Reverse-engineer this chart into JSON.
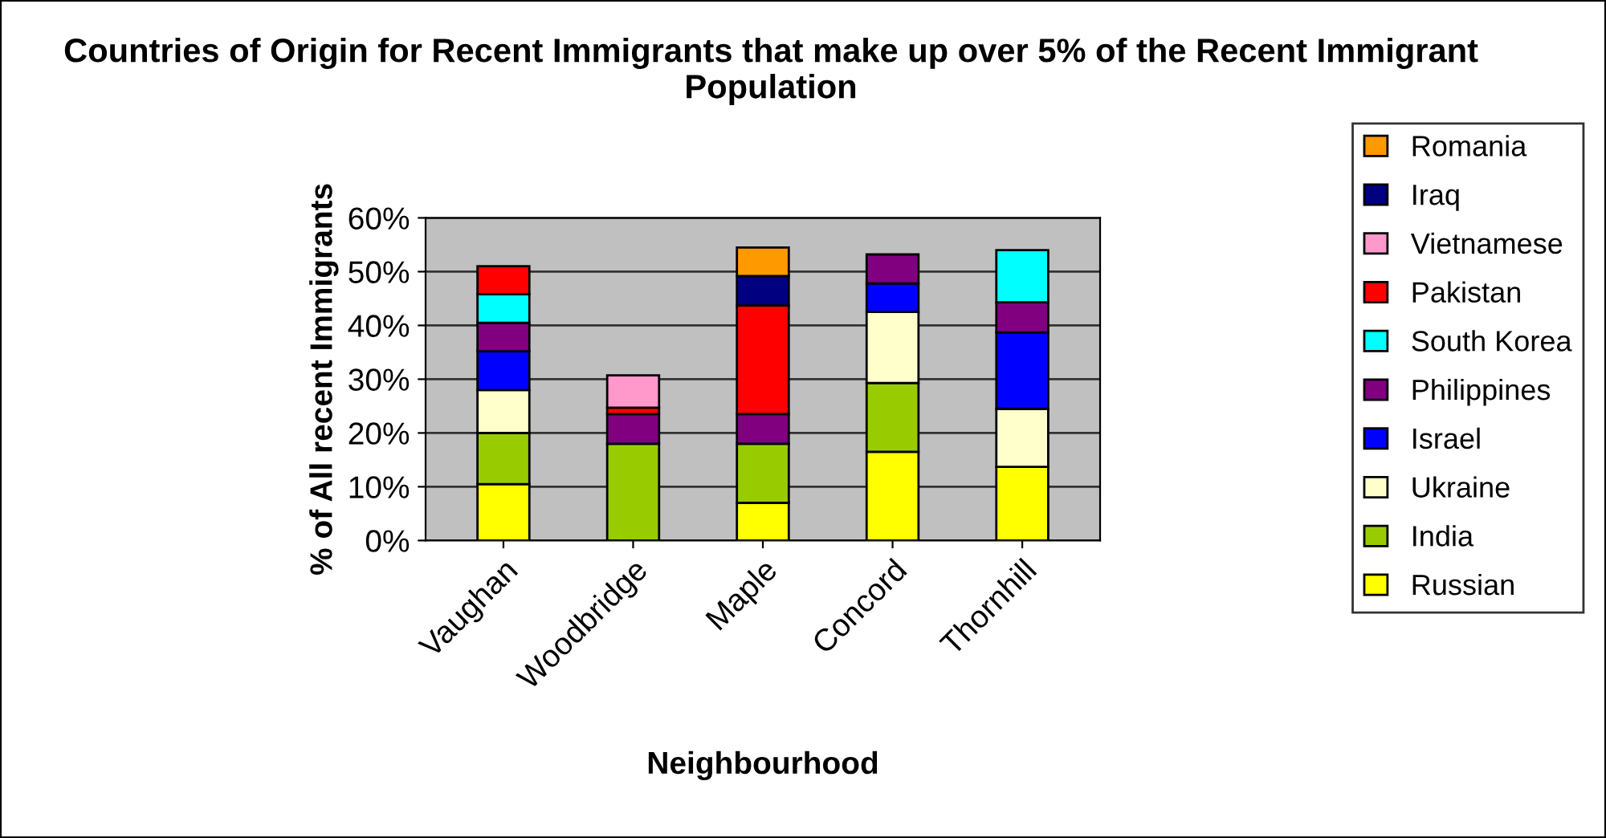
{
  "chart_data": {
    "type": "bar",
    "title": "Countries of Origin for Recent Immigrants that make up over 5% of the Recent Immigrant Population",
    "xlabel": "Neighbourhood",
    "ylabel": "% of All recent Immigrants",
    "categories": [
      "Vaughan",
      "Woodbridge",
      "Maple",
      "Concord",
      "Thornhill"
    ],
    "stacked": true,
    "grid": "y",
    "legend": "right",
    "ylim": [
      0,
      60
    ],
    "yticks": [
      {
        "value": 0,
        "label": "0%"
      },
      {
        "value": 10,
        "label": "10%"
      },
      {
        "value": 20,
        "label": "20%"
      },
      {
        "value": 30,
        "label": "30%"
      },
      {
        "value": 40,
        "label": "40%"
      },
      {
        "value": 50,
        "label": "50%"
      },
      {
        "value": 60,
        "label": "60%"
      }
    ],
    "series": [
      {
        "name": "Russian",
        "color": "#ffff00",
        "values": [
          10.5,
          null,
          7,
          16.5,
          13.7
        ]
      },
      {
        "name": "India",
        "color": "#99cc00",
        "values": [
          9.5,
          18,
          11,
          12.8,
          null
        ]
      },
      {
        "name": "Ukraine",
        "color": "#ffffcc",
        "values": [
          8,
          null,
          null,
          13.2,
          10.8
        ]
      },
      {
        "name": "Israel",
        "color": "#0000ff",
        "values": [
          7.2,
          null,
          null,
          5.3,
          14.2
        ]
      },
      {
        "name": "Philippines",
        "color": "#800080",
        "values": [
          5.3,
          5.5,
          5.5,
          5.4,
          5.6
        ]
      },
      {
        "name": "South Korea",
        "color": "#00ffff",
        "values": [
          5.3,
          null,
          null,
          null,
          9.7
        ]
      },
      {
        "name": "Pakistan",
        "color": "#ff0000",
        "values": [
          5.2,
          1.2,
          20.2,
          null,
          null
        ]
      },
      {
        "name": "Vietnamese",
        "color": "#ff99cc",
        "values": [
          null,
          6,
          null,
          null,
          null
        ]
      },
      {
        "name": "Iraq",
        "color": "#000080",
        "values": [
          null,
          null,
          5.5,
          null,
          null
        ]
      },
      {
        "name": "Romania",
        "color": "#ff9900",
        "values": [
          null,
          null,
          5.3,
          null,
          null
        ]
      }
    ]
  }
}
